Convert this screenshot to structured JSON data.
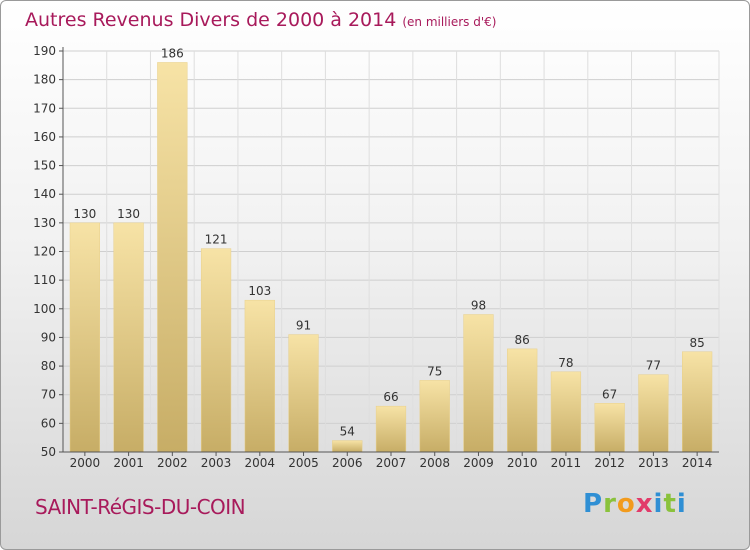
{
  "header": {
    "title": "Autres Revenus Divers de 2000 à 2014",
    "unit": "(en milliers d'€)"
  },
  "footer": {
    "town": "SAINT-RéGIS-DU-COIN",
    "logo": "Proxiti"
  },
  "colors": {
    "title": "#a81a5b",
    "bar_light": "#f7e3a6",
    "bar_dark": "#c7ad66"
  },
  "chart_data": {
    "type": "bar",
    "title": "Autres Revenus Divers de 2000 à 2014",
    "xlabel": "",
    "ylabel": "",
    "categories": [
      "2000",
      "2001",
      "2002",
      "2003",
      "2004",
      "2005",
      "2006",
      "2007",
      "2008",
      "2009",
      "2010",
      "2011",
      "2012",
      "2013",
      "2014"
    ],
    "values": [
      130,
      130,
      186,
      121,
      103,
      91,
      54,
      66,
      75,
      98,
      86,
      78,
      67,
      77,
      85
    ],
    "ylim": [
      50,
      190
    ],
    "yticks": [
      50,
      60,
      70,
      80,
      90,
      100,
      110,
      120,
      130,
      140,
      150,
      160,
      170,
      180,
      190
    ],
    "grid": true
  }
}
